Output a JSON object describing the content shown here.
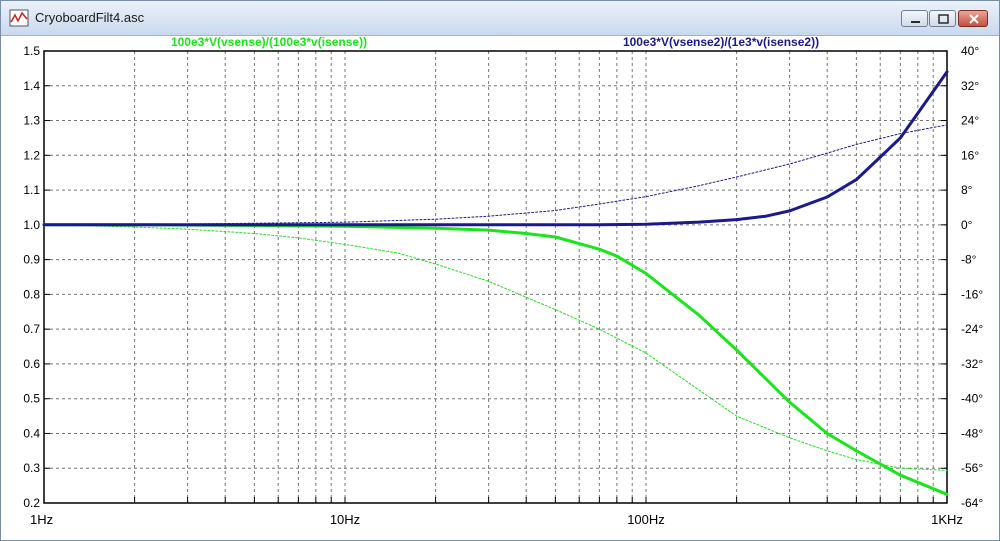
{
  "window": {
    "title": "CryoboardFilt4.asc",
    "icon": "waveform-icon",
    "buttons": [
      "minimize-icon",
      "maximize-icon",
      "close-icon"
    ]
  },
  "chart_data": {
    "type": "line",
    "x_scale": "log",
    "xlim": [
      1,
      1000
    ],
    "x_ticks": [
      1,
      10,
      100,
      1000
    ],
    "x_tick_labels": [
      "1Hz",
      "10Hz",
      "100Hz",
      "1KHz"
    ],
    "ylim": [
      0.2,
      1.5
    ],
    "y_ticks": [
      0.2,
      0.3,
      0.4,
      0.5,
      0.6,
      0.7,
      0.8,
      0.9,
      1.0,
      1.1,
      1.2,
      1.3,
      1.4,
      1.5
    ],
    "y_tick_labels": [
      "0.2",
      "0.3",
      "0.4",
      "0.5",
      "0.6",
      "0.7",
      "0.8",
      "0.9",
      "1.0",
      "1.1",
      "1.2",
      "1.3",
      "1.4",
      "1.5"
    ],
    "y2lim": [
      -64,
      40
    ],
    "y2_ticks": [
      -64,
      -56,
      -48,
      -40,
      -32,
      -24,
      -16,
      -8,
      0,
      8,
      16,
      24,
      32,
      40
    ],
    "y2_tick_labels": [
      "-64°",
      "-56°",
      "-48°",
      "-40°",
      "-32°",
      "-24°",
      "-16°",
      "-8°",
      "0°",
      "8°",
      "16°",
      "24°",
      "32°",
      "40°"
    ],
    "grid": true,
    "legend": {
      "left": {
        "text": "100e3*V(vsense)/(100e3*v(isense))",
        "color": "#19e619"
      },
      "right": {
        "text": "100e3*V(vsense2)/(1e3*v(isense2))",
        "color": "#1a1a8c"
      }
    },
    "series": [
      {
        "name": "100e3*V(vsense)/(100e3*v(isense))",
        "color": "#19e619",
        "style": "solid",
        "x": [
          1,
          2,
          5,
          10,
          20,
          30,
          40,
          50,
          70,
          80,
          100,
          150,
          200,
          300,
          400,
          500,
          700,
          1000
        ],
        "values": [
          1.0,
          1.0,
          0.998,
          0.996,
          0.99,
          0.985,
          0.975,
          0.965,
          0.93,
          0.91,
          0.86,
          0.74,
          0.64,
          0.49,
          0.4,
          0.35,
          0.28,
          0.225
        ]
      },
      {
        "name": "100e3*V(vsense)/(100e3*v(isense)) phase",
        "color": "#19e619",
        "style": "thin",
        "axis": "right",
        "x": [
          1,
          2,
          3,
          5,
          7,
          10,
          15,
          20,
          30,
          50,
          70,
          100,
          150,
          200,
          300,
          400,
          500,
          700,
          1000
        ],
        "values": [
          0,
          -0.5,
          -1,
          -2,
          -3,
          -4.5,
          -6.5,
          -9,
          -13,
          -19.5,
          -24,
          -29.5,
          -38,
          -44,
          -49,
          -52,
          -54,
          -56,
          -56.5
        ]
      },
      {
        "name": "100e3*V(vsense2)/(1e3*v(isense2))",
        "color": "#1a1a8c",
        "style": "solid",
        "x": [
          1,
          5,
          10,
          30,
          50,
          70,
          100,
          150,
          200,
          250,
          300,
          400,
          500,
          700,
          1000
        ],
        "values": [
          1.0,
          1.0,
          1.0,
          1.0,
          1.0,
          1.0,
          1.002,
          1.008,
          1.015,
          1.025,
          1.04,
          1.08,
          1.13,
          1.25,
          1.44
        ]
      },
      {
        "name": "100e3*V(vsense2)/(1e3*v(isense2)) phase",
        "color": "#1a1a8c",
        "style": "thin",
        "axis": "right",
        "x": [
          1,
          3,
          10,
          20,
          30,
          50,
          70,
          100,
          150,
          200,
          300,
          400,
          500,
          700,
          1000
        ],
        "values": [
          0,
          0.2,
          0.6,
          1.3,
          2,
          3.3,
          4.8,
          6.5,
          9,
          11,
          14,
          16.5,
          18.5,
          21,
          23
        ]
      }
    ]
  }
}
